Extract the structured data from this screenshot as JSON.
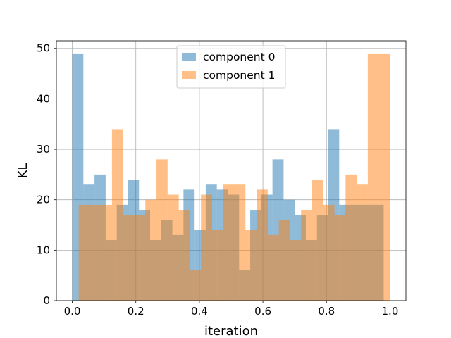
{
  "chart_data": {
    "type": "bar",
    "subtype": "overlapping-histogram",
    "xlabel": "iteration",
    "ylabel": "KL",
    "xlim": [
      -0.05,
      1.05
    ],
    "ylim": [
      0,
      51.5
    ],
    "xticks": [
      0.0,
      0.2,
      0.4,
      0.6,
      0.8,
      1.0
    ],
    "xtick_labels": [
      "0.0",
      "0.2",
      "0.4",
      "0.6",
      "0.8",
      "1.0"
    ],
    "yticks": [
      0,
      10,
      20,
      30,
      40,
      50
    ],
    "ytick_labels": [
      "0",
      "10",
      "20",
      "30",
      "40",
      "50"
    ],
    "grid": true,
    "legend_position": "upper-center",
    "series": [
      {
        "name": "component 0",
        "color": "#1f77b4",
        "alpha": 0.5,
        "bin_range": [
          0.0,
          0.98
        ],
        "values": [
          49,
          23,
          25,
          12,
          19,
          24,
          18,
          12,
          16,
          13,
          22,
          14,
          23,
          22,
          21,
          6,
          18,
          21,
          28,
          20,
          17,
          12,
          17,
          34,
          19,
          19,
          19,
          19
        ]
      },
      {
        "name": "component 1",
        "color": "#ff7f0e",
        "alpha": 0.5,
        "bin_range": [
          0.02,
          1.0
        ],
        "values": [
          19,
          19,
          19,
          34,
          17,
          17,
          20,
          28,
          21,
          18,
          6,
          21,
          14,
          23,
          23,
          14,
          22,
          13,
          16,
          12,
          18,
          24,
          19,
          17,
          25,
          23,
          49,
          49
        ]
      }
    ]
  }
}
